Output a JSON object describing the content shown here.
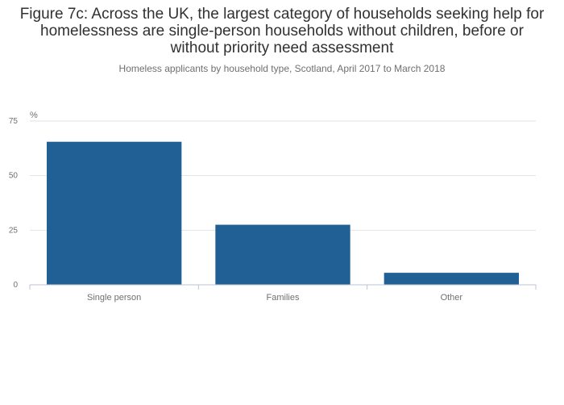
{
  "chart_data": {
    "type": "bar",
    "title": "Figure 7c: Across the UK, the largest category of households seeking help for homelessness are single-person households without children, before or without priority need assessment",
    "subtitle": "Homeless applicants by household type, Scotland, April 2017 to March 2018",
    "categories": [
      "Single person",
      "Families",
      "Other"
    ],
    "values": [
      65.5,
      27.5,
      5.5
    ],
    "ylabel": "%",
    "ylim": [
      0,
      75
    ],
    "yticks": [
      "0",
      "25",
      "50",
      "75"
    ],
    "grid": true,
    "bar_color": "#206095"
  }
}
